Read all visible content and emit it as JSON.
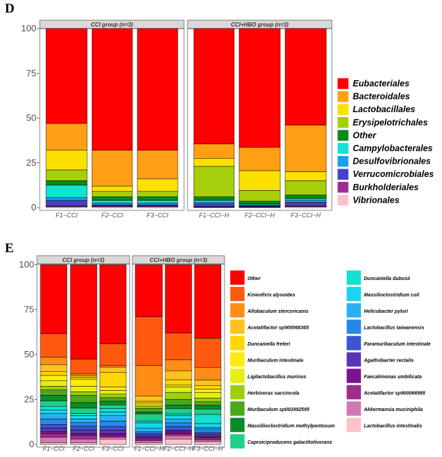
{
  "chart_data": [
    {
      "type": "stacked-bar",
      "panel": "D",
      "ylim": [
        0,
        100
      ],
      "yticks": [
        "0",
        "25",
        "50",
        "75",
        "100"
      ],
      "legend_position": "right",
      "groups": [
        {
          "label": "CCI group (n=3)",
          "samples": [
            "F1−CCI",
            "F2−CCI",
            "F3−CCI"
          ]
        },
        {
          "label": "CCI+HBO group (n=3)",
          "samples": [
            "F1−CCI−H",
            "F2−CCI−H",
            "F3−CCI−H"
          ]
        }
      ],
      "taxa": [
        "Eubacteriales",
        "Bacteroidales",
        "Lactobacillales",
        "Erysipelotrichales",
        "Other",
        "Campylobacterales",
        "Desulfovibrionales",
        "Verrucomicrobiales",
        "Burkholderiales",
        "Vibrionales"
      ],
      "colors": [
        "#ff0000",
        "#ff9f14",
        "#fbe100",
        "#a6ce0a",
        "#088a18",
        "#12e2d4",
        "#1e9eee",
        "#4242c8",
        "#9e2c98",
        "#ffc0cb"
      ],
      "series": [
        {
          "name": "Eubacteriales",
          "values": [
            53,
            68,
            68,
            64.5,
            66,
            54
          ]
        },
        {
          "name": "Bacteroidales",
          "values": [
            15,
            20,
            16,
            8,
            13,
            26
          ]
        },
        {
          "name": "Lactobacillales",
          "values": [
            11,
            3,
            7,
            4.5,
            11,
            5
          ]
        },
        {
          "name": "Erysipelotrichales",
          "values": [
            6,
            3,
            3,
            17,
            6,
            8
          ]
        },
        {
          "name": "Other",
          "values": [
            2.5,
            2,
            2,
            2,
            1.5,
            2
          ]
        },
        {
          "name": "Campylobacterales",
          "values": [
            7,
            1.5,
            1.5,
            1,
            0.5,
            1
          ]
        },
        {
          "name": "Desulfovibrionales",
          "values": [
            1.5,
            1,
            1,
            1,
            0.5,
            1
          ]
        },
        {
          "name": "Verrucomicrobiales",
          "values": [
            3,
            0.5,
            0.5,
            1.5,
            0.5,
            2
          ]
        },
        {
          "name": "Burkholderiales",
          "values": [
            0.5,
            0.5,
            0.5,
            0.3,
            0.3,
            0.5
          ]
        },
        {
          "name": "Vibrionales",
          "values": [
            0.5,
            0.5,
            0.5,
            0.2,
            0.2,
            0.5
          ]
        }
      ]
    },
    {
      "type": "stacked-bar",
      "panel": "E",
      "ylim": [
        0,
        100
      ],
      "yticks": [
        "0",
        "25",
        "50",
        "75",
        "100"
      ],
      "legend_position": "right",
      "groups": [
        {
          "label": "CCI group (n=3)",
          "samples": [
            "F1−CCI",
            "F2−CCI",
            "F3−CCI"
          ]
        },
        {
          "label": "CCI+HBO group (n=3)",
          "samples": [
            "F1−CCI−H",
            "F2−CCI−H",
            "F3−CCI−H"
          ]
        }
      ],
      "taxa": [
        "Other",
        "Kineothrix alysoides",
        "Allobaculum stercoricanis",
        "Acetatifactor sp900066365",
        "Duncaniella freteri",
        "Muribaculum intestinale",
        "Ligilactobacillus murinus",
        "Herbivorax saccincola",
        "Muribaculum sp002492595",
        "Massiliioclostridium methylpentosum",
        "Caproiciproducens galactitolivorans",
        "Duncaniella dubosii",
        "Massilioclostridium coli",
        "Helicobacter pylori",
        "Lactobacillus taiwanensis",
        "Paramuribaculum intestinale",
        "Agathobacter rectalis",
        "Faecalimonas umbilicata",
        "Acetatifactor sp900066565",
        "Akkermansia muciniphila",
        "Lactobacillus intestinalis"
      ],
      "colors": [
        "#ff0000",
        "#ff5a0e",
        "#ff8c14",
        "#ffc21e",
        "#ffd700",
        "#fdeb0a",
        "#e6ef12",
        "#9fcf0a",
        "#4ca81a",
        "#0a8c28",
        "#1ecf8a",
        "#13e0d0",
        "#18d6f0",
        "#28b0f2",
        "#2a86e8",
        "#3a56d2",
        "#5a36b0",
        "#7a148e",
        "#a02c8c",
        "#cf7ab4",
        "#ffc2cc"
      ],
      "series": [
        {
          "name": "Other",
          "values": [
            38,
            52,
            44,
            29,
            38,
            40.5
          ]
        },
        {
          "name": "Kineothrix alysoides",
          "values": [
            13,
            8,
            12,
            27,
            15,
            16
          ]
        },
        {
          "name": "Allobaculum stercoricanis",
          "values": [
            4,
            1,
            1,
            17,
            6,
            7
          ]
        },
        {
          "name": "Acetatifactor sp900066365",
          "values": [
            4,
            1,
            3,
            3,
            5,
            3
          ]
        },
        {
          "name": "Duncaniella freteri",
          "values": [
            2,
            1,
            8,
            1,
            3,
            2
          ]
        },
        {
          "name": "Muribaculum intestinale",
          "values": [
            3,
            4,
            2,
            1,
            1,
            2
          ]
        },
        {
          "name": "Ligilactobacillus murinus",
          "values": [
            3,
            3,
            2,
            1,
            3,
            3
          ]
        },
        {
          "name": "Herbivorax saccincola",
          "values": [
            2,
            2,
            2,
            1,
            4,
            2
          ]
        },
        {
          "name": "Muribaculum sp002492595",
          "values": [
            3,
            4,
            2,
            2,
            3,
            2
          ]
        },
        {
          "name": "Massiliioclostridium methylpentosum",
          "values": [
            3,
            3,
            2,
            1,
            2,
            2
          ]
        },
        {
          "name": "Caproiciproducens galactitolivorans",
          "values": [
            3,
            3,
            2,
            4,
            3,
            3
          ]
        },
        {
          "name": "Duncaniella dubosii",
          "values": [
            2,
            1,
            2,
            1,
            1,
            5
          ]
        },
        {
          "name": "Massilioclostridium coli",
          "values": [
            2,
            2,
            2,
            3,
            2,
            2
          ]
        },
        {
          "name": "Helicobacter pylori",
          "values": [
            3,
            2,
            3,
            2,
            2,
            1
          ]
        },
        {
          "name": "Lactobacillus taiwanensis",
          "values": [
            3,
            2,
            3,
            1,
            2,
            2
          ]
        },
        {
          "name": "Paramuribaculum intestinale",
          "values": [
            2,
            2,
            2,
            1,
            2,
            1
          ]
        },
        {
          "name": "Agathobacter rectalis",
          "values": [
            2,
            2,
            2,
            1,
            1,
            1
          ]
        },
        {
          "name": "Faecalimonas umbilicata",
          "values": [
            1,
            1,
            1,
            1,
            1,
            1
          ]
        },
        {
          "name": "Acetatifactor sp900066565",
          "values": [
            2,
            2,
            1,
            1,
            1,
            1
          ]
        },
        {
          "name": "Akkermansia muciniphila",
          "values": [
            3,
            2,
            1,
            1,
            2,
            1
          ]
        },
        {
          "name": "Lactobacillus intestinalis",
          "values": [
            1,
            1,
            3,
            1,
            3,
            1.5
          ]
        }
      ]
    }
  ]
}
